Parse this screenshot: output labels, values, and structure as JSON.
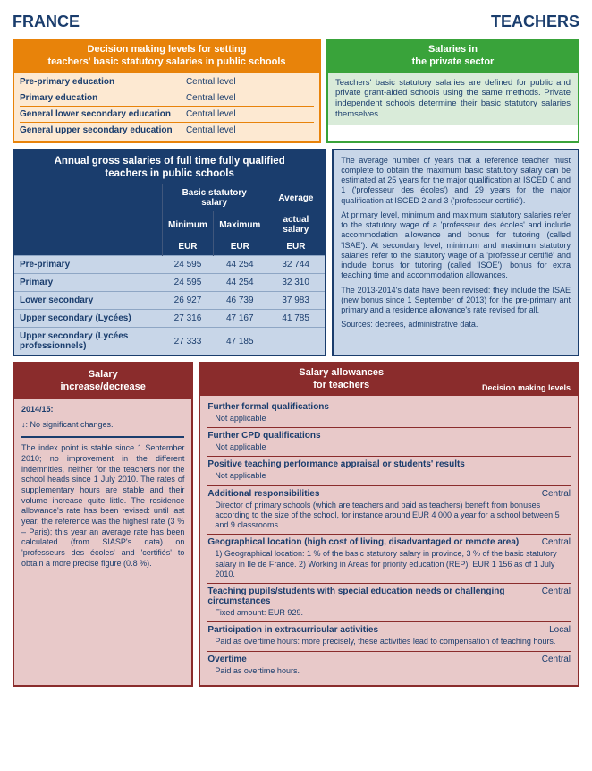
{
  "header": {
    "left": "FRANCE",
    "right": "TEACHERS"
  },
  "orange": {
    "title1": "Decision making levels for setting",
    "title2": "teachers' basic statutory salaries in public schools",
    "rows": [
      {
        "label": "Pre-primary education",
        "value": "Central level"
      },
      {
        "label": "Primary education",
        "value": "Central level"
      },
      {
        "label": "General lower secondary education",
        "value": "Central level"
      },
      {
        "label": "General upper secondary education",
        "value": "Central level"
      }
    ]
  },
  "green": {
    "title1": "Salaries in",
    "title2": "the private sector",
    "body": "Teachers' basic statutory salaries are defined for public and private grant-aided schools using the same methods. Private independent schools determine their basic statutory salaries themselves."
  },
  "blue": {
    "title1": "Annual gross salaries of full time fully qualified",
    "title2": "teachers in public schools",
    "col_group_basic": "Basic statutory salary",
    "col_group_avg": "Average",
    "col_min": "Minimum",
    "col_max": "Maximum",
    "col_actual": "actual salary",
    "unit": "EUR",
    "rows": [
      {
        "level": "Pre-primary",
        "min": "24 595",
        "max": "44 254",
        "actual": "32 744"
      },
      {
        "level": "Primary",
        "min": "24 595",
        "max": "44 254",
        "actual": "32 310"
      },
      {
        "level": "Lower secondary",
        "min": "26 927",
        "max": "46 739",
        "actual": "37 983"
      },
      {
        "level": "Upper secondary (Lycées)",
        "min": "27 316",
        "max": "47 167",
        "actual": "41 785"
      },
      {
        "level": "Upper secondary (Lycées professionnels)",
        "min": "27 333",
        "max": "47 185",
        "actual": ""
      }
    ],
    "side": {
      "p1": "The average number of years that a reference teacher must complete to obtain the maximum basic statutory salary can be estimated at 25 years for the major qualification at ISCED 0 and 1 ('professeur des écoles') and 29 years for the major qualification at ISCED 2 and 3 ('professeur certifié').",
      "p2": "At primary level, minimum and maximum statutory salaries refer to the statutory wage of a 'professeur des écoles' and include accommodation allowance and bonus for tutoring (called 'ISAE'). At secondary level, minimum and maximum statutory salaries refer to the statutory wage of a 'professeur certifié' and include bonus for tutoring (called 'ISOE'), bonus for extra teaching time and accommodation allowances.",
      "p3": "The 2013-2014's data have been revised: they include the ISAE (new bonus since 1 September of 2013) for the pre-primary ant primary and a residence allowance's rate revised for all.",
      "p4": "Sources: decrees, administrative data."
    }
  },
  "maroonLeft": {
    "title1": "Salary",
    "title2": "increase/decrease",
    "year": "2014/15:",
    "arrow": "↓: No significant changes.",
    "body": "The index point is stable since 1 September 2010; no improvement in the different indemnities, neither for the teachers nor the school heads since 1 July 2010. The rates of supplementary hours are stable and their volume increase quite little. The residence allowance's rate has been revised: until last year, the reference was the highest rate (3 % – Paris); this year an average rate has been calculated (from SIASP's data) on 'professeurs des écoles' and 'certifiés' to obtain a more precise figure (0.8 %)."
  },
  "maroonRight": {
    "title1": "Salary allowances",
    "title2": "for teachers",
    "levels_header": "Decision making levels",
    "items": [
      {
        "name": "Further formal qualifications",
        "level": "",
        "desc": "Not applicable"
      },
      {
        "name": "Further CPD qualifications",
        "level": "",
        "desc": "Not applicable"
      },
      {
        "name": "Positive teaching performance appraisal or students' results",
        "level": "",
        "desc": "Not applicable"
      },
      {
        "name": "Additional responsibilities",
        "level": "Central",
        "desc": "Director of primary schools (which are teachers and paid as teachers) benefit from bonuses according to the size of the school, for instance around EUR 4 000 a year for a school between 5 and 9 classrooms."
      },
      {
        "name": "Geographical location (high cost of living, disadvantaged or remote area)",
        "level": "Central",
        "desc": "1) Geographical location: 1 % of the basic statutory salary in province, 3 % of the basic statutory salary in Ile de France.\n2) Working in Areas for priority education (REP): EUR 1 156 as of 1 July 2010."
      },
      {
        "name": "Teaching pupils/students with special education needs or challenging circumstances",
        "level": "Central",
        "desc": "Fixed amount: EUR 929."
      },
      {
        "name": "Participation in extracurricular activities",
        "level": "Local",
        "desc": "Paid as overtime hours: more precisely, these activities lead to compensation of teaching hours."
      },
      {
        "name": "Overtime",
        "level": "Central",
        "desc": "Paid as overtime hours."
      }
    ]
  }
}
